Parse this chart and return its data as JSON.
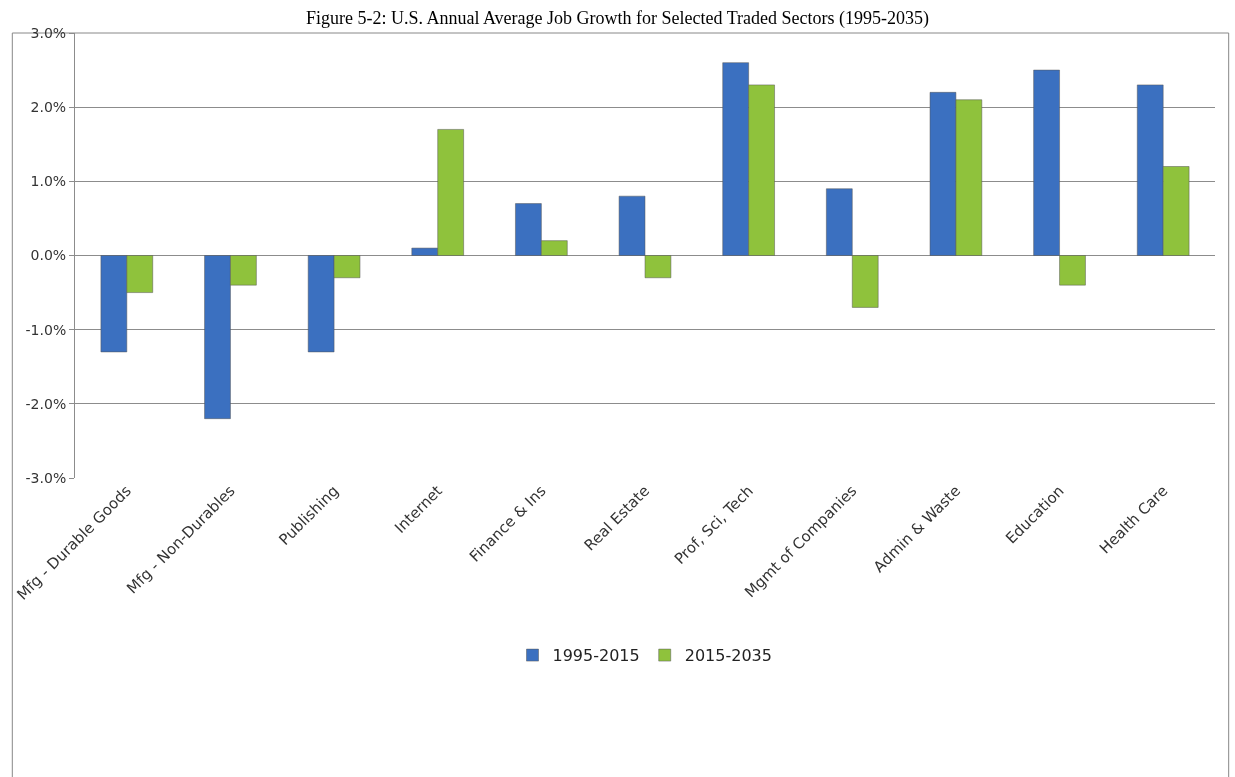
{
  "chart_data": {
    "type": "bar",
    "title": "Figure 5-2: U.S. Annual Average Job Growth for Selected Traded Sectors (1995-2035)",
    "categories": [
      "Mfg - Durable Goods",
      "Mfg - Non-Durables",
      "Publishing",
      "Internet",
      "Finance & Ins",
      "Real Estate",
      "Prof, Sci, Tech",
      "Mgmt of Companies",
      "Admin & Waste",
      "Education",
      "Health Care"
    ],
    "series": [
      {
        "name": "1995-2015",
        "color": "#3b70c0",
        "values": [
          -1.3,
          -2.2,
          -1.3,
          0.1,
          0.7,
          0.8,
          2.6,
          0.9,
          2.2,
          2.5,
          2.3
        ]
      },
      {
        "name": "2015-2035",
        "color": "#8fc23c",
        "values": [
          -0.5,
          -0.4,
          -0.3,
          1.7,
          0.2,
          -0.3,
          2.3,
          -0.7,
          2.1,
          -0.4,
          1.2
        ]
      }
    ],
    "ylim": [
      -3,
      3
    ],
    "yticks": [
      {
        "value": -3,
        "label": "-3.0%"
      },
      {
        "value": -2,
        "label": "-2.0%"
      },
      {
        "value": -1,
        "label": "-1.0%"
      },
      {
        "value": 0,
        "label": "0.0%"
      },
      {
        "value": 1,
        "label": "1.0%"
      },
      {
        "value": 2,
        "label": "2.0%"
      },
      {
        "value": 3,
        "label": "3.0%"
      }
    ],
    "grid": "y",
    "legend": "bottom"
  }
}
